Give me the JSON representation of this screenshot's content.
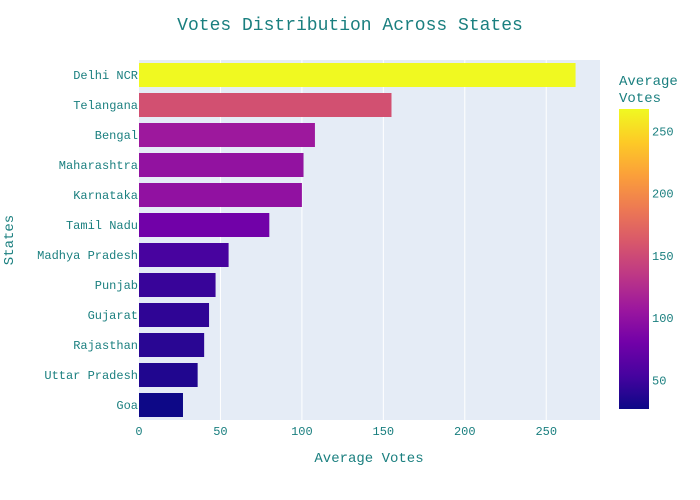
{
  "chart_data": {
    "type": "bar",
    "orientation": "horizontal",
    "title": "Votes Distribution Across States",
    "xlabel": "Average Votes",
    "ylabel": "States",
    "xlim": [
      0,
      283
    ],
    "x_ticks": [
      0,
      50,
      100,
      150,
      200,
      250
    ],
    "grid": true,
    "categories": [
      "Goa",
      "Uttar Pradesh",
      "Rajasthan",
      "Gujarat",
      "Punjab",
      "Madhya Pradesh",
      "Tamil Nadu",
      "Karnataka",
      "Maharashtra",
      "Bengal",
      "Telangana",
      "Delhi NCR"
    ],
    "values": [
      27,
      36,
      40,
      43,
      47,
      55,
      80,
      100,
      101,
      108,
      155,
      268
    ],
    "colorscale": "plasma",
    "colorbar": {
      "title_lines": [
        "Average",
        "Votes"
      ],
      "range": [
        27,
        268
      ],
      "ticks": [
        50,
        100,
        150,
        200,
        250
      ]
    }
  },
  "colors": {
    "plot_bg": "#e5ecf6",
    "text": "#1a7f7f",
    "grid": "#ffffff"
  }
}
